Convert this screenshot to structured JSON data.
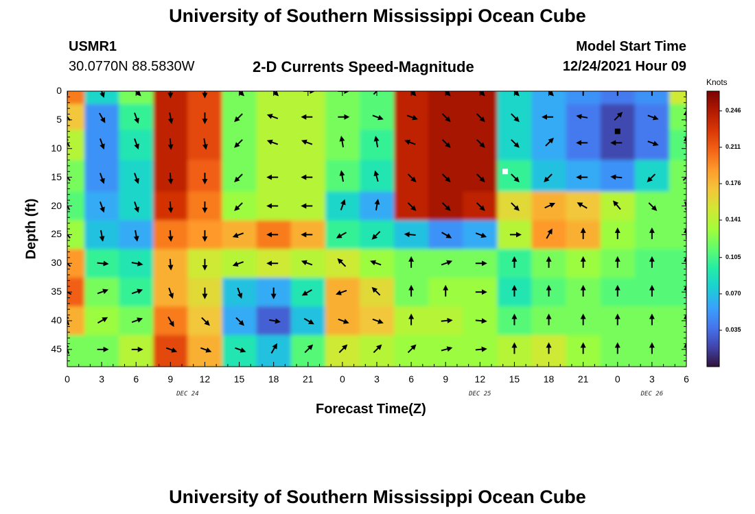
{
  "page": {
    "title_top": "University of Southern Mississippi Ocean Cube",
    "title_bottom": "University of Southern Mississippi Ocean Cube",
    "station_id": "USMR1",
    "station_coords": "30.0770N  88.5830W",
    "subtitle": "2-D Currents Speed-Magnitude",
    "model_start_label": "Model Start Time",
    "model_start_value": "12/24/2021 Hour 09"
  },
  "chart_data": {
    "type": "heatmap",
    "title": "2-D Currents Speed-Magnitude",
    "xlabel": "Forecast Time(Z)",
    "ylabel": "Depth (ft)",
    "x_range_hours": [
      0,
      54
    ],
    "x_tick_labels": [
      "0",
      "3",
      "6",
      "9",
      "12",
      "15",
      "18",
      "21",
      "0",
      "3",
      "6",
      "9",
      "12",
      "15",
      "18",
      "21",
      "0",
      "3",
      "6"
    ],
    "date_labels": [
      {
        "text": "DEC 24",
        "hour": 10.5
      },
      {
        "text": "DEC 25",
        "hour": 36
      },
      {
        "text": "DEC 26",
        "hour": 51
      }
    ],
    "y_ticks": [
      0,
      5,
      10,
      15,
      20,
      25,
      30,
      35,
      40,
      45
    ],
    "ylim": [
      0,
      48
    ],
    "colorbar": {
      "label": "Knots",
      "ticks": [
        0.246,
        0.211,
        0.176,
        0.141,
        0.105,
        0.07,
        0.035
      ],
      "range": [
        0.0,
        0.265
      ],
      "colors": [
        "#30123b",
        "#4145ab",
        "#4675ed",
        "#39a2fc",
        "#1bcfd4",
        "#24eca6",
        "#61fc6c",
        "#a4fc3b",
        "#d1e834",
        "#f3c63a",
        "#fe9b2d",
        "#f36315",
        "#d93806",
        "#b11901",
        "#7a0402"
      ]
    },
    "arrow_rows_depth": [
      0,
      4.5,
      9,
      15,
      20,
      25,
      30,
      35,
      40,
      45
    ],
    "arrow_cols_hours": [
      0,
      3,
      6,
      9,
      12,
      15,
      18,
      21,
      24,
      27,
      30,
      33,
      36,
      39,
      42,
      45,
      48,
      51,
      54
    ],
    "speed_field_knots": [
      [
        0.2,
        0.08,
        0.12,
        0.24,
        0.22,
        0.12,
        0.14,
        0.14,
        0.12,
        0.11,
        0.24,
        0.25,
        0.25,
        0.08,
        0.06,
        0.05,
        0.04,
        0.05,
        0.15
      ],
      [
        0.17,
        0.05,
        0.1,
        0.24,
        0.22,
        0.12,
        0.14,
        0.14,
        0.12,
        0.11,
        0.24,
        0.25,
        0.25,
        0.08,
        0.06,
        0.04,
        0.02,
        0.04,
        0.12
      ],
      [
        0.14,
        0.05,
        0.09,
        0.24,
        0.22,
        0.12,
        0.14,
        0.14,
        0.12,
        0.1,
        0.24,
        0.25,
        0.25,
        0.08,
        0.06,
        0.04,
        0.02,
        0.04,
        0.11
      ],
      [
        0.12,
        0.05,
        0.08,
        0.24,
        0.21,
        0.12,
        0.14,
        0.14,
        0.11,
        0.09,
        0.24,
        0.25,
        0.25,
        0.1,
        0.07,
        0.06,
        0.05,
        0.08,
        0.12
      ],
      [
        0.11,
        0.06,
        0.08,
        0.23,
        0.2,
        0.13,
        0.14,
        0.14,
        0.08,
        0.06,
        0.24,
        0.25,
        0.24,
        0.16,
        0.18,
        0.17,
        0.14,
        0.12,
        0.12
      ],
      [
        0.13,
        0.07,
        0.06,
        0.2,
        0.19,
        0.18,
        0.2,
        0.18,
        0.1,
        0.09,
        0.07,
        0.05,
        0.06,
        0.14,
        0.19,
        0.18,
        0.13,
        0.12,
        0.12
      ],
      [
        0.19,
        0.1,
        0.09,
        0.18,
        0.15,
        0.14,
        0.15,
        0.14,
        0.15,
        0.13,
        0.12,
        0.12,
        0.12,
        0.1,
        0.12,
        0.13,
        0.12,
        0.11,
        0.11
      ],
      [
        0.21,
        0.12,
        0.1,
        0.18,
        0.16,
        0.07,
        0.06,
        0.09,
        0.18,
        0.16,
        0.12,
        0.13,
        0.13,
        0.09,
        0.11,
        0.12,
        0.11,
        0.11,
        0.11
      ],
      [
        0.18,
        0.13,
        0.12,
        0.2,
        0.17,
        0.06,
        0.03,
        0.07,
        0.18,
        0.17,
        0.14,
        0.14,
        0.13,
        0.11,
        0.12,
        0.12,
        0.12,
        0.12,
        0.12
      ],
      [
        0.12,
        0.12,
        0.14,
        0.22,
        0.18,
        0.09,
        0.07,
        0.11,
        0.15,
        0.14,
        0.13,
        0.13,
        0.13,
        0.14,
        0.15,
        0.13,
        0.12,
        0.12,
        0.12
      ]
    ],
    "current_direction_deg": [
      [
        0,
        160,
        135,
        180,
        180,
        135,
        135,
        90,
        90,
        45,
        135,
        135,
        135,
        135,
        135,
        0,
        0,
        0,
        0
      ],
      [
        320,
        150,
        160,
        170,
        180,
        225,
        290,
        270,
        90,
        110,
        110,
        135,
        135,
        135,
        270,
        280,
        45,
        110,
        0
      ],
      [
        330,
        160,
        160,
        175,
        170,
        225,
        290,
        290,
        350,
        350,
        290,
        135,
        135,
        135,
        45,
        270,
        270,
        110,
        0
      ],
      [
        320,
        160,
        160,
        175,
        180,
        225,
        270,
        270,
        350,
        345,
        135,
        135,
        135,
        135,
        225,
        270,
        275,
        225,
        45
      ],
      [
        330,
        160,
        160,
        175,
        180,
        225,
        270,
        270,
        20,
        10,
        135,
        135,
        135,
        135,
        65,
        300,
        320,
        135,
        160
      ],
      [
        320,
        170,
        170,
        175,
        180,
        250,
        270,
        270,
        240,
        225,
        275,
        120,
        110,
        90,
        30,
        0,
        0,
        0,
        0
      ],
      [
        315,
        95,
        100,
        175,
        180,
        250,
        270,
        290,
        315,
        290,
        0,
        70,
        90,
        0,
        0,
        0,
        0,
        0,
        0
      ],
      [
        300,
        70,
        70,
        160,
        180,
        160,
        180,
        240,
        250,
        315,
        0,
        0,
        90,
        0,
        0,
        0,
        0,
        0,
        0
      ],
      [
        340,
        60,
        70,
        150,
        135,
        135,
        100,
        120,
        110,
        110,
        0,
        85,
        95,
        0,
        0,
        0,
        0,
        0,
        0
      ],
      [
        340,
        90,
        90,
        110,
        110,
        110,
        30,
        45,
        45,
        45,
        45,
        75,
        85,
        0,
        0,
        0,
        0,
        0,
        0
      ]
    ],
    "markers": [
      {
        "color": "#ffffff",
        "hour": 38.2,
        "depth": 14
      },
      {
        "color": "#000000",
        "hour": 48.0,
        "depth": 7
      }
    ]
  }
}
